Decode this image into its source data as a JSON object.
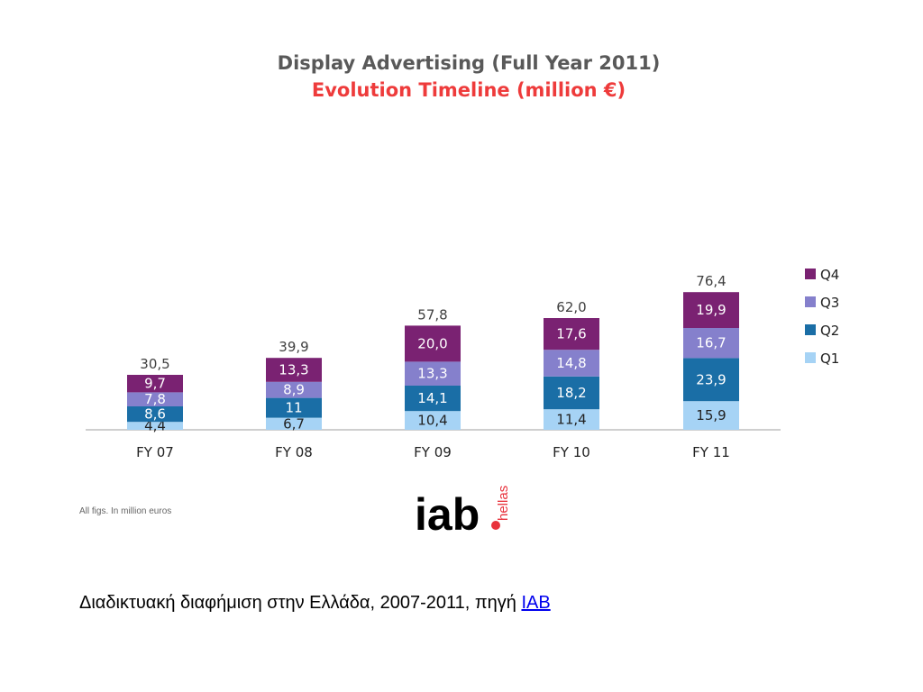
{
  "chart_data": {
    "type": "bar",
    "stacked": true,
    "title": "Display Advertising (Full Year 2011)",
    "subtitle": "Evolution Timeline (million €)",
    "categories": [
      "FY 07",
      "FY 08",
      "FY 09",
      "FY 10",
      "FY 11"
    ],
    "series": [
      {
        "name": "Q1",
        "values": [
          4.4,
          6.7,
          10.4,
          11.4,
          15.9
        ],
        "labels": [
          "4,4",
          "6,7",
          "10,4",
          "11,4",
          "15,9"
        ],
        "color": "#a6d3f5"
      },
      {
        "name": "Q2",
        "values": [
          8.6,
          11,
          14.1,
          18.2,
          23.9
        ],
        "labels": [
          "8,6",
          "11",
          "14,1",
          "18,2",
          "23,9"
        ],
        "color": "#1a6ea6"
      },
      {
        "name": "Q3",
        "values": [
          7.8,
          8.9,
          13.3,
          14.8,
          16.7
        ],
        "labels": [
          "7,8",
          "8,9",
          "13,3",
          "14,8",
          "16,7"
        ],
        "color": "#8580cc"
      },
      {
        "name": "Q4",
        "values": [
          9.7,
          13.3,
          20.0,
          17.6,
          19.9
        ],
        "labels": [
          "9,7",
          "13,3",
          "20,0",
          "17,6",
          "19,9"
        ],
        "color": "#7a2272"
      }
    ],
    "totals": [
      30.5,
      39.9,
      57.8,
      62.0,
      76.4
    ],
    "total_labels": [
      "30,5",
      "39,9",
      "57,8",
      "62,0",
      "76,4"
    ],
    "legend_position": "right",
    "grid": false
  },
  "footnote": "All figs. In million euros",
  "logo": {
    "text": "iab",
    "sub": "hellas"
  },
  "caption": {
    "text": "Διαδικτυακή διαφήμιση στην Ελλάδα, 2007-2011, πηγή ",
    "link": "IAB"
  },
  "colors": {
    "title": "#595959",
    "subtitle": "#ee3b3b",
    "logo_dot": "#e8323c"
  }
}
